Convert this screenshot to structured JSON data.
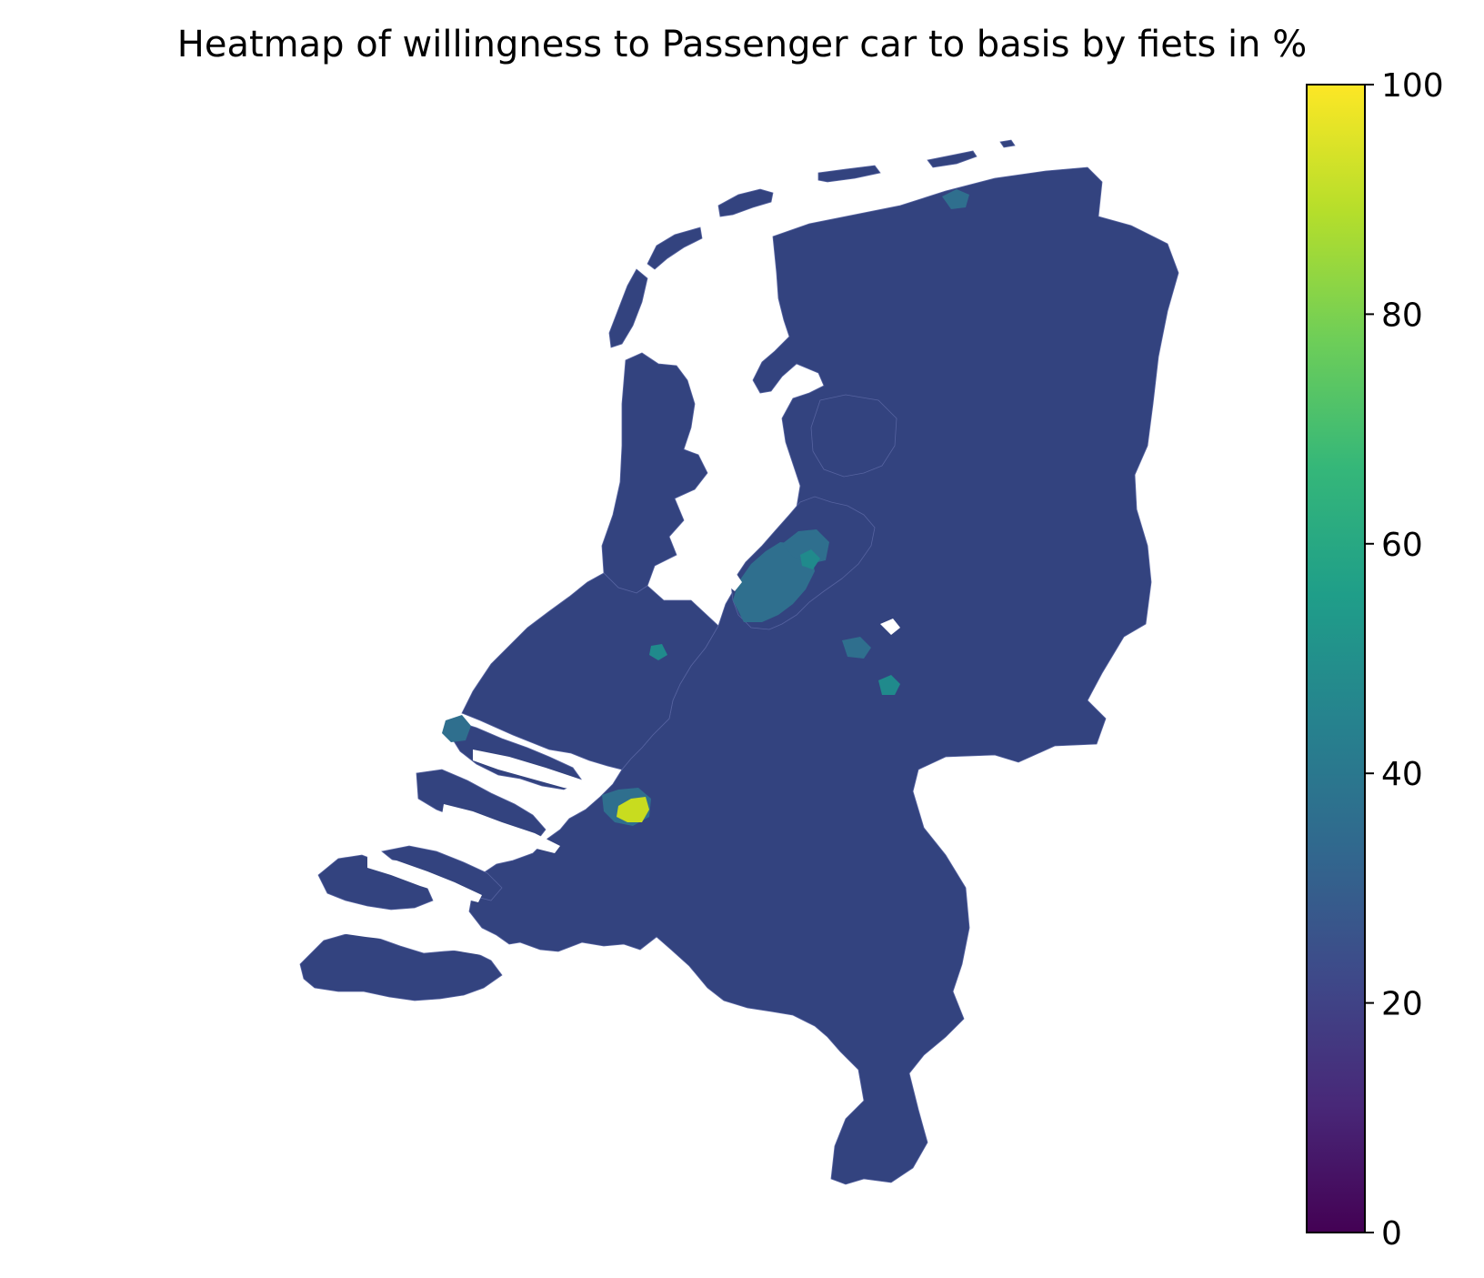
{
  "title": "Heatmap of willingness to Passenger car to basis by fiets in %",
  "colorbar": {
    "colormap": "viridis",
    "min": 0,
    "max": 100,
    "ticks": [
      "0",
      "20",
      "40",
      "60",
      "80",
      "100"
    ],
    "stops": [
      "#440154",
      "#482878",
      "#3e4989",
      "#31688e",
      "#26828e",
      "#1f9e89",
      "#35b779",
      "#6ece58",
      "#b5de2b",
      "#fde725"
    ]
  },
  "map": {
    "region": "Netherlands",
    "base_color": "#33437f",
    "typical_value_percent": 22,
    "highlight_colors": {
      "high_area": "#c8dc1f",
      "mid_areas": "#2f6f8e",
      "teal_areas": "#208a8c"
    }
  }
}
